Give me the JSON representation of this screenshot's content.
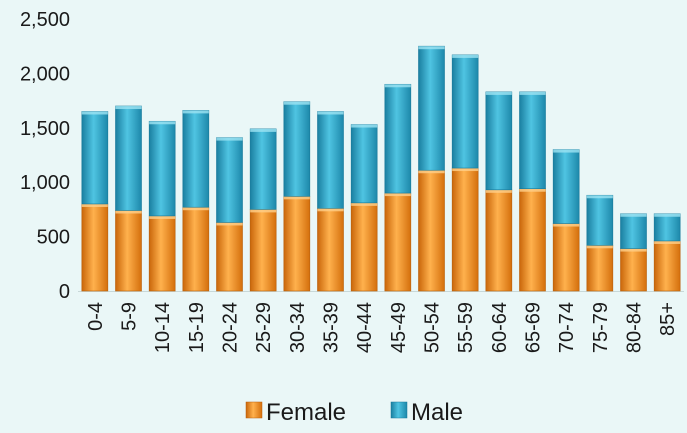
{
  "chart_data": {
    "type": "bar",
    "stacked": true,
    "categories": [
      "0-4",
      "5-9",
      "10-14",
      "15-19",
      "20-24",
      "25-29",
      "30-34",
      "35-39",
      "40-44",
      "45-49",
      "50-54",
      "55-59",
      "60-64",
      "65-69",
      "70-74",
      "75-79",
      "80-84",
      "85+"
    ],
    "series": [
      {
        "name": "Female",
        "color": "#f0901e",
        "values": [
          800,
          740,
          690,
          770,
          630,
          750,
          870,
          760,
          810,
          900,
          1110,
          1130,
          930,
          940,
          620,
          420,
          390,
          460
        ]
      },
      {
        "name": "Male",
        "color": "#2aa6c9",
        "values": [
          850,
          960,
          870,
          890,
          780,
          740,
          870,
          890,
          720,
          1000,
          1140,
          1040,
          900,
          890,
          680,
          460,
          320,
          250
        ]
      }
    ],
    "y_ticks": [
      "0",
      "500",
      "1,000",
      "1,500",
      "2,000",
      "2,500"
    ],
    "ylim": [
      0,
      2500
    ],
    "grid": false,
    "legend_position": "bottom"
  }
}
